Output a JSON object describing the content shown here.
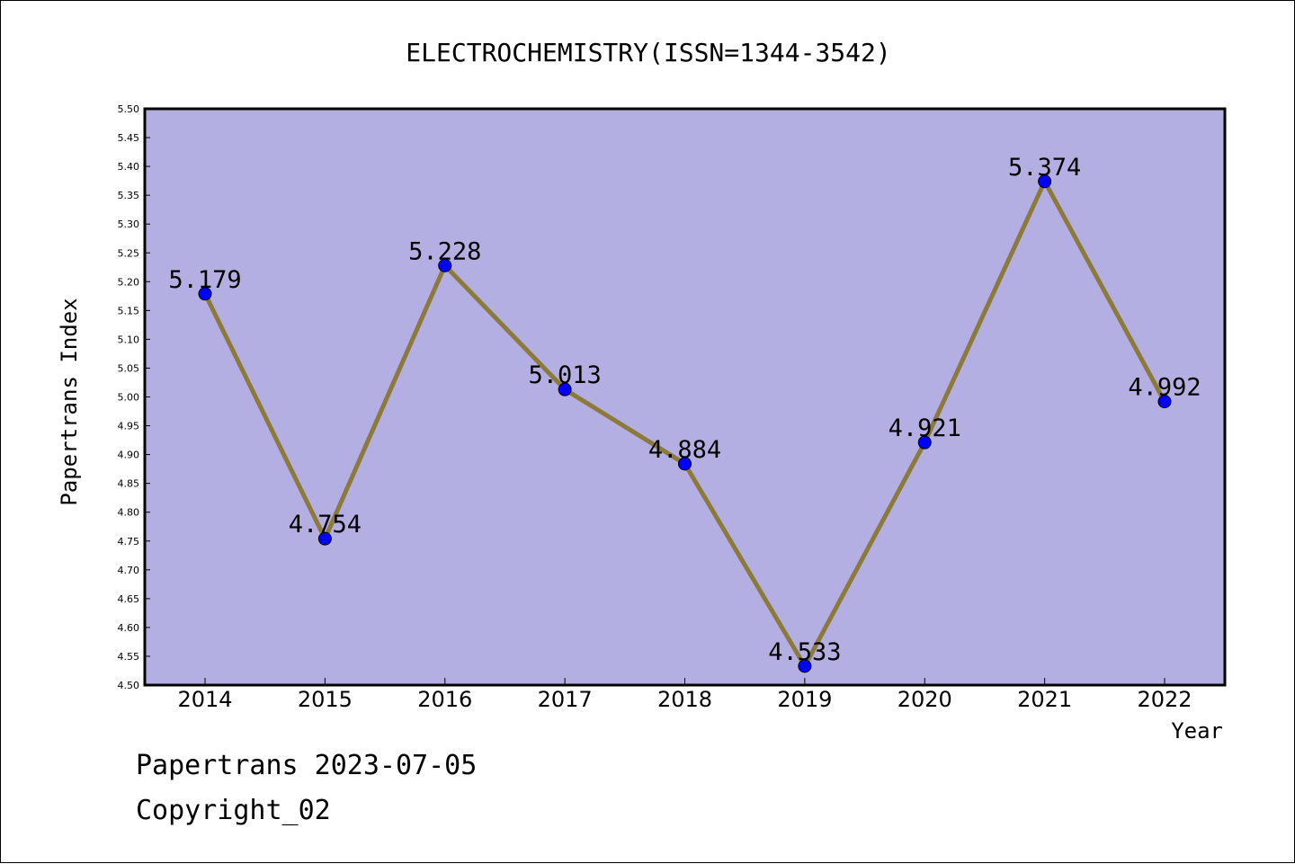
{
  "chart_data": {
    "type": "line",
    "title": "ELECTROCHEMISTRY(ISSN=1344-3542)",
    "xlabel": "Year",
    "ylabel": "Papertrans Index",
    "categories": [
      "2014",
      "2015",
      "2016",
      "2017",
      "2018",
      "2019",
      "2020",
      "2021",
      "2022"
    ],
    "series": [
      {
        "values": [
          5.179,
          4.754,
          5.228,
          5.013,
          4.884,
          4.533,
          4.921,
          5.374,
          4.992
        ]
      }
    ],
    "data_labels": [
      "5.179",
      "4.754",
      "5.228",
      "5.013",
      "4.884",
      "4.533",
      "4.921",
      "5.374",
      "4.992"
    ],
    "ylim": [
      4.5,
      5.5
    ],
    "yticks": [
      "4.50",
      "4.55",
      "4.60",
      "4.65",
      "4.70",
      "4.75",
      "4.80",
      "4.85",
      "4.90",
      "4.95",
      "5.00",
      "5.05",
      "5.10",
      "5.15",
      "5.20",
      "5.25",
      "5.30",
      "5.35",
      "5.40",
      "5.45",
      "5.50"
    ],
    "grid": false,
    "legend": "none",
    "colors": {
      "plot_background": "#b4afe2",
      "line": "#8b7a3a",
      "marker": "#0000ff"
    }
  },
  "footer": {
    "line1": "Papertrans 2023-07-05",
    "line2": "Copyright_02"
  }
}
